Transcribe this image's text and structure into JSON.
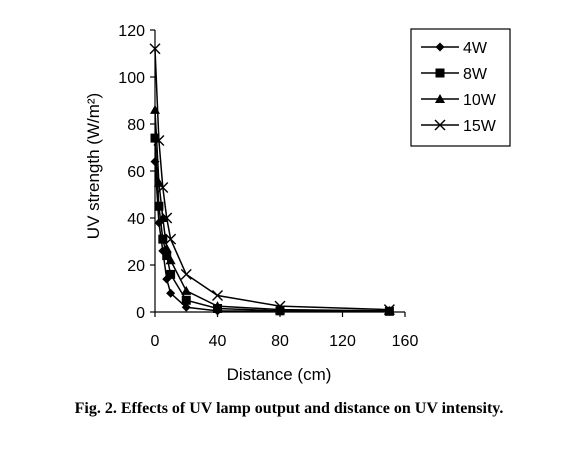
{
  "caption": "Fig. 2. Effects of UV lamp output and distance on UV intensity.",
  "chart_data": {
    "type": "line",
    "xlabel": "Distance (cm)",
    "ylabel": "UV strength (W/m²)",
    "xlim": [
      0,
      160
    ],
    "ylim": [
      0,
      120
    ],
    "xticks": [
      0,
      40,
      80,
      120,
      160
    ],
    "yticks": [
      0,
      20,
      40,
      60,
      80,
      100,
      120
    ],
    "grid": false,
    "legend_position": "top-right",
    "series": [
      {
        "name": "4W",
        "marker": "diamond",
        "x": [
          0,
          2.5,
          5,
          7.5,
          10,
          20,
          40,
          80,
          150
        ],
        "y": [
          64,
          38,
          26,
          14,
          8,
          2,
          0.5,
          0.3,
          0.2
        ]
      },
      {
        "name": "8W",
        "marker": "square",
        "x": [
          0,
          2.5,
          5,
          7.5,
          10,
          20,
          40,
          80,
          150
        ],
        "y": [
          74,
          45,
          31,
          24,
          16,
          5,
          1.5,
          0.5,
          0.3
        ]
      },
      {
        "name": "10W",
        "marker": "triangle",
        "x": [
          0,
          2.5,
          5,
          7.5,
          10,
          20,
          40,
          80,
          150
        ],
        "y": [
          86,
          55,
          40,
          27,
          22,
          9,
          2.5,
          1,
          0.5
        ]
      },
      {
        "name": "15W",
        "marker": "x",
        "x": [
          0,
          2.5,
          5,
          7.5,
          10,
          20,
          40,
          80,
          150
        ],
        "y": [
          112,
          73,
          53,
          40,
          31,
          16,
          7,
          2.5,
          1
        ]
      }
    ]
  }
}
